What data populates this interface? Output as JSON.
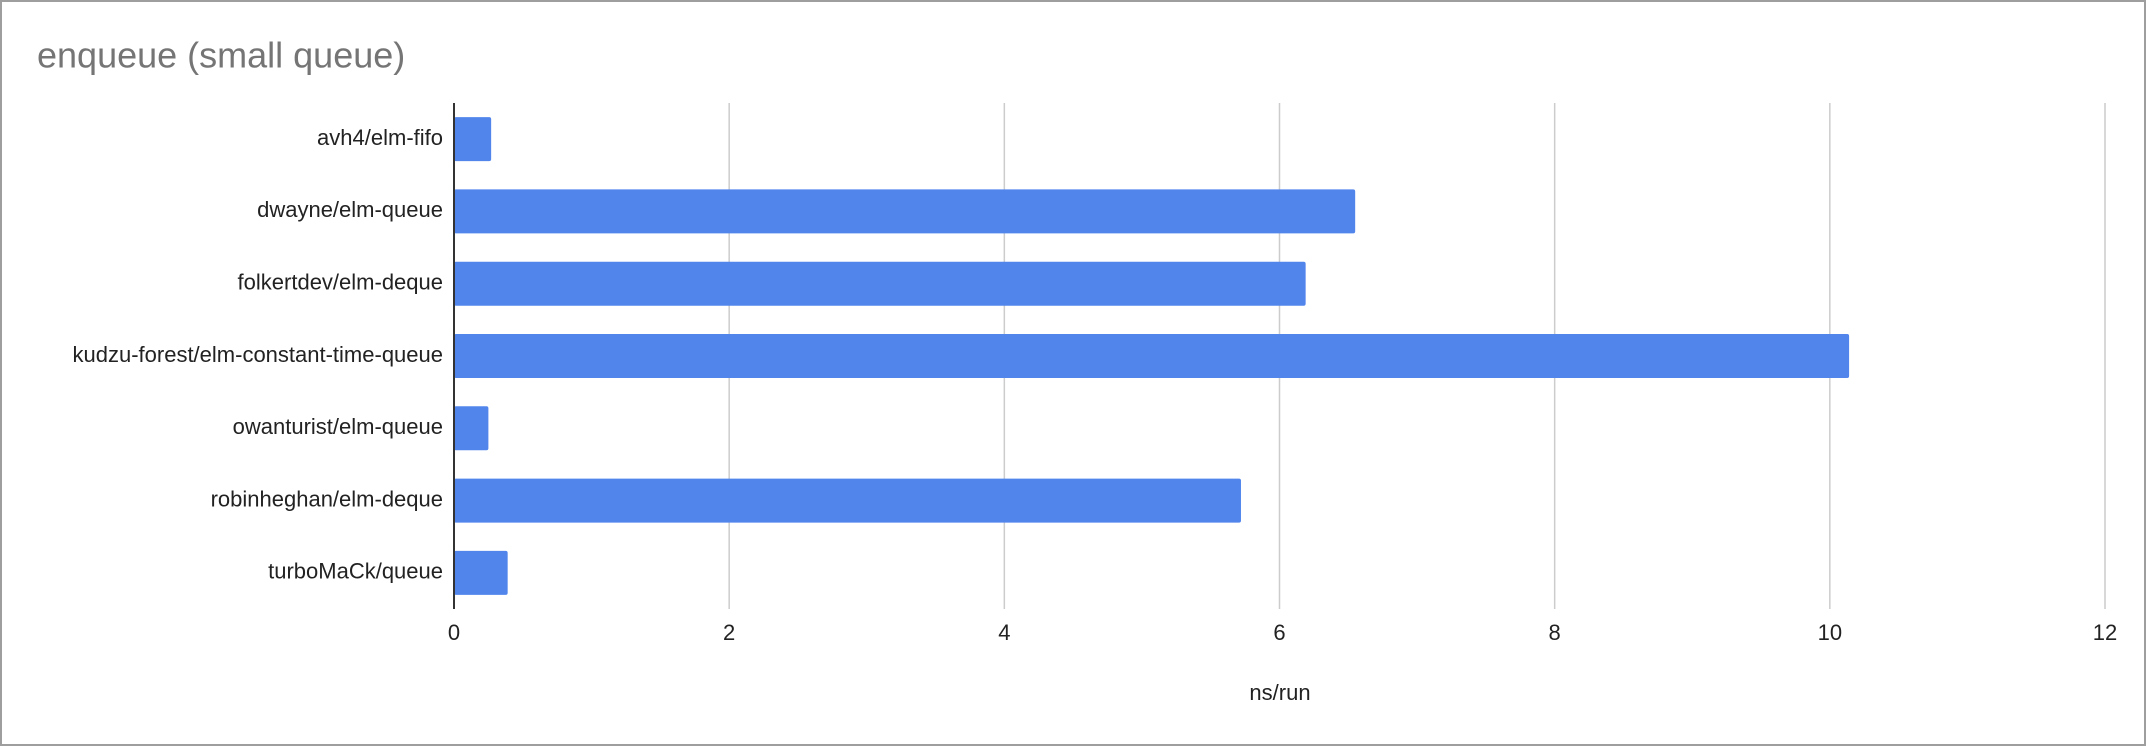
{
  "chart_data": {
    "type": "hbar",
    "title": "enqueue (small queue)",
    "x_label": "ns/run",
    "categories": [
      "avh4/elm-fifo",
      "dwayne/elm-queue",
      "folkertdev/elm-deque",
      "kudzu-forest/elm-constant-time-queue",
      "owanturist/elm-queue",
      "robinheghan/elm-deque",
      "turboMaCk/queue"
    ],
    "values": [
      0.27,
      6.55,
      6.19,
      10.14,
      0.25,
      5.72,
      0.39
    ],
    "color": "#5185ec",
    "xlim": [
      0,
      12
    ],
    "xticks": [
      0,
      2,
      4,
      6,
      8,
      10,
      12
    ],
    "grid": true
  }
}
